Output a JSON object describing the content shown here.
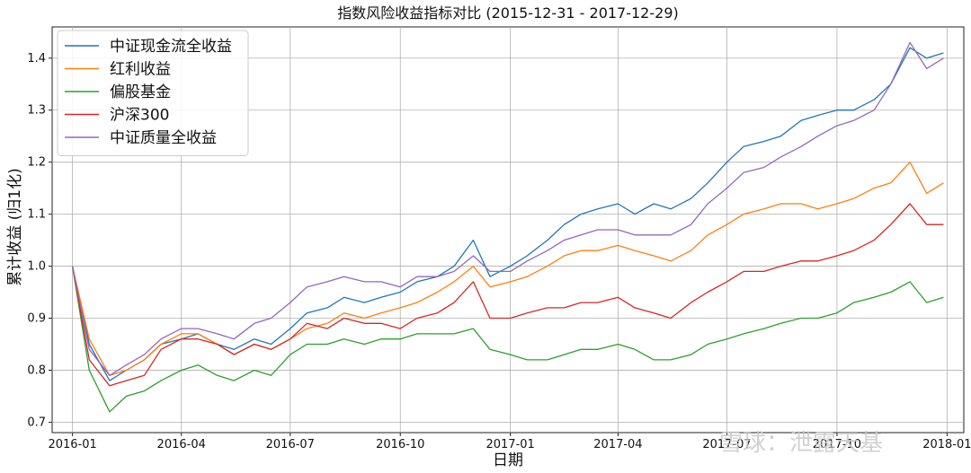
{
  "chart_data": {
    "type": "line",
    "title": "指数风险收益指标对比 (2015-12-31 - 2017-12-29)",
    "xlabel": "日期",
    "ylabel": "累计收益 (归1化)",
    "ylim": [
      0.68,
      1.46
    ],
    "xlim": [
      "2015-12-15",
      "2018-01-15"
    ],
    "x_ticks": [
      "2016-01",
      "2016-04",
      "2016-07",
      "2016-10",
      "2017-01",
      "2017-04",
      "2017-07",
      "2017-10",
      "2018-01"
    ],
    "y_ticks": [
      0.7,
      0.8,
      0.9,
      1.0,
      1.1,
      1.2,
      1.3,
      1.4
    ],
    "grid": true,
    "legend_position": "top-left",
    "x": [
      "2016-01-01",
      "2016-01-15",
      "2016-02-01",
      "2016-02-15",
      "2016-03-01",
      "2016-03-15",
      "2016-04-01",
      "2016-04-15",
      "2016-05-01",
      "2016-05-15",
      "2016-06-01",
      "2016-06-15",
      "2016-07-01",
      "2016-07-15",
      "2016-08-01",
      "2016-08-15",
      "2016-09-01",
      "2016-09-15",
      "2016-10-01",
      "2016-10-15",
      "2016-11-01",
      "2016-11-15",
      "2016-12-01",
      "2016-12-15",
      "2017-01-01",
      "2017-01-15",
      "2017-02-01",
      "2017-02-15",
      "2017-03-01",
      "2017-03-15",
      "2017-04-01",
      "2017-04-15",
      "2017-05-01",
      "2017-05-15",
      "2017-06-01",
      "2017-06-15",
      "2017-07-01",
      "2017-07-15",
      "2017-08-01",
      "2017-08-15",
      "2017-09-01",
      "2017-09-15",
      "2017-10-01",
      "2017-10-15",
      "2017-11-01",
      "2017-11-15",
      "2017-12-01",
      "2017-12-15",
      "2017-12-29"
    ],
    "series": [
      {
        "name": "中证现金流全收益",
        "color": "#1f77b4",
        "values": [
          1.0,
          0.85,
          0.78,
          0.8,
          0.82,
          0.85,
          0.86,
          0.87,
          0.85,
          0.84,
          0.86,
          0.85,
          0.88,
          0.91,
          0.92,
          0.94,
          0.93,
          0.94,
          0.95,
          0.97,
          0.98,
          1.0,
          1.05,
          0.98,
          1.0,
          1.02,
          1.05,
          1.08,
          1.1,
          1.11,
          1.12,
          1.1,
          1.12,
          1.11,
          1.13,
          1.16,
          1.2,
          1.23,
          1.24,
          1.25,
          1.28,
          1.29,
          1.3,
          1.3,
          1.32,
          1.35,
          1.42,
          1.4,
          1.41
        ]
      },
      {
        "name": "红利收益",
        "color": "#ff7f0e",
        "values": [
          1.0,
          0.86,
          0.79,
          0.8,
          0.82,
          0.85,
          0.87,
          0.87,
          0.85,
          0.83,
          0.85,
          0.84,
          0.86,
          0.88,
          0.89,
          0.91,
          0.9,
          0.91,
          0.92,
          0.93,
          0.95,
          0.97,
          1.0,
          0.96,
          0.97,
          0.98,
          1.0,
          1.02,
          1.03,
          1.03,
          1.04,
          1.03,
          1.02,
          1.01,
          1.03,
          1.06,
          1.08,
          1.1,
          1.11,
          1.12,
          1.12,
          1.11,
          1.12,
          1.13,
          1.15,
          1.16,
          1.2,
          1.14,
          1.16
        ]
      },
      {
        "name": "偏股基金",
        "color": "#2ca02c",
        "values": [
          1.0,
          0.8,
          0.72,
          0.75,
          0.76,
          0.78,
          0.8,
          0.81,
          0.79,
          0.78,
          0.8,
          0.79,
          0.83,
          0.85,
          0.85,
          0.86,
          0.85,
          0.86,
          0.86,
          0.87,
          0.87,
          0.87,
          0.88,
          0.84,
          0.83,
          0.82,
          0.82,
          0.83,
          0.84,
          0.84,
          0.85,
          0.84,
          0.82,
          0.82,
          0.83,
          0.85,
          0.86,
          0.87,
          0.88,
          0.89,
          0.9,
          0.9,
          0.91,
          0.93,
          0.94,
          0.95,
          0.97,
          0.93,
          0.94
        ]
      },
      {
        "name": "沪深300",
        "color": "#d62728",
        "values": [
          1.0,
          0.82,
          0.77,
          0.78,
          0.79,
          0.84,
          0.86,
          0.86,
          0.85,
          0.83,
          0.85,
          0.84,
          0.86,
          0.89,
          0.88,
          0.9,
          0.89,
          0.89,
          0.88,
          0.9,
          0.91,
          0.93,
          0.97,
          0.9,
          0.9,
          0.91,
          0.92,
          0.92,
          0.93,
          0.93,
          0.94,
          0.92,
          0.91,
          0.9,
          0.93,
          0.95,
          0.97,
          0.99,
          0.99,
          1.0,
          1.01,
          1.01,
          1.02,
          1.03,
          1.05,
          1.08,
          1.12,
          1.08,
          1.08
        ]
      },
      {
        "name": "中证质量全收益",
        "color": "#9467bd",
        "values": [
          1.0,
          0.84,
          0.79,
          0.81,
          0.83,
          0.86,
          0.88,
          0.88,
          0.87,
          0.86,
          0.89,
          0.9,
          0.93,
          0.96,
          0.97,
          0.98,
          0.97,
          0.97,
          0.96,
          0.98,
          0.98,
          0.99,
          1.02,
          0.99,
          0.99,
          1.01,
          1.03,
          1.05,
          1.06,
          1.07,
          1.07,
          1.06,
          1.06,
          1.06,
          1.08,
          1.12,
          1.15,
          1.18,
          1.19,
          1.21,
          1.23,
          1.25,
          1.27,
          1.28,
          1.3,
          1.35,
          1.43,
          1.38,
          1.4
        ]
      }
    ]
  },
  "watermark": {
    "text": "雪球：泄露天基"
  }
}
